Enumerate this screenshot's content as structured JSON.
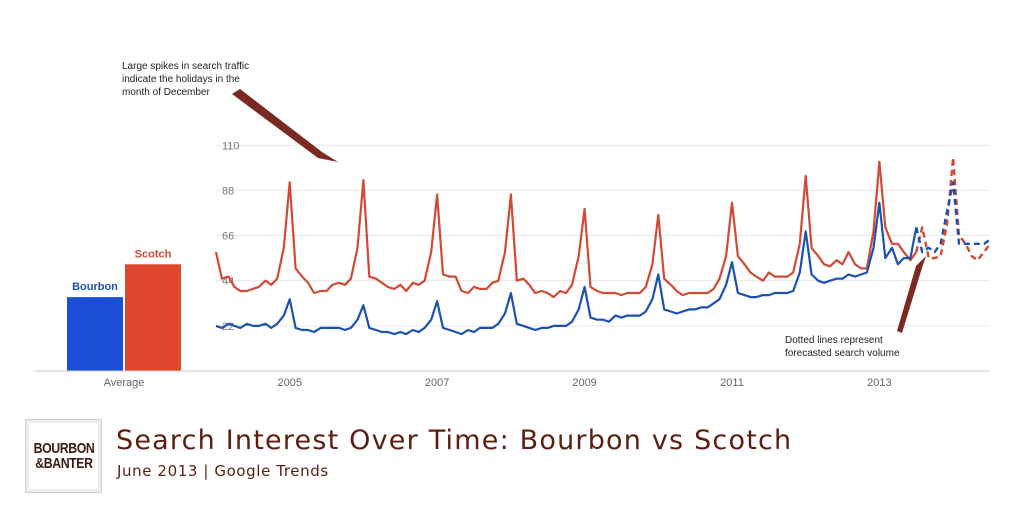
{
  "logo": {
    "line1": "BOURBON",
    "line2": "&BANTER"
  },
  "title": "Search Interest Over Time: Bourbon vs Scotch",
  "subtitle": "June 2013 | Google Trends",
  "annotations": {
    "spikes": "Large spikes in search traffic\nindicate the holidays in the\nmonth of December",
    "dotted": "Dotted lines represent\nforecasted search volume"
  },
  "colors": {
    "bourbon": "#1c51b0",
    "scotch": "#d04a35",
    "bar_bourbon": "#1c4fd6",
    "bar_scotch": "#e0472f",
    "grid": "#e6e6e6",
    "arrow": "#7a2a20"
  },
  "chart_data": {
    "type": "line",
    "title": "",
    "ylim": [
      0,
      115
    ],
    "yticks": [
      22,
      44,
      66,
      88,
      110
    ],
    "xlim": [
      2004.0,
      2014.5
    ],
    "xticks": [
      "2005",
      "2007",
      "2009",
      "2011",
      "2013"
    ],
    "grid": true,
    "average_bars": {
      "label": "Average",
      "legend_position": "above-bars",
      "bars": [
        {
          "name": "Bourbon",
          "value": 36
        },
        {
          "name": "Scotch",
          "value": 52
        }
      ]
    },
    "series": [
      {
        "name": "Scotch",
        "forecast_from": 2013.5,
        "points": [
          [
            2004.0,
            58
          ],
          [
            2004.08,
            45
          ],
          [
            2004.17,
            46
          ],
          [
            2004.25,
            41
          ],
          [
            2004.33,
            39
          ],
          [
            2004.42,
            39
          ],
          [
            2004.5,
            40
          ],
          [
            2004.58,
            41
          ],
          [
            2004.67,
            44
          ],
          [
            2004.75,
            42
          ],
          [
            2004.83,
            45
          ],
          [
            2004.92,
            60
          ],
          [
            2005.0,
            92
          ],
          [
            2005.08,
            50
          ],
          [
            2005.17,
            46
          ],
          [
            2005.25,
            43
          ],
          [
            2005.33,
            38
          ],
          [
            2005.42,
            39
          ],
          [
            2005.5,
            39
          ],
          [
            2005.58,
            42
          ],
          [
            2005.67,
            43
          ],
          [
            2005.75,
            42
          ],
          [
            2005.83,
            45
          ],
          [
            2005.92,
            60
          ],
          [
            2006.0,
            93
          ],
          [
            2006.08,
            46
          ],
          [
            2006.17,
            45
          ],
          [
            2006.25,
            43
          ],
          [
            2006.33,
            41
          ],
          [
            2006.42,
            40
          ],
          [
            2006.5,
            42
          ],
          [
            2006.58,
            39
          ],
          [
            2006.67,
            43
          ],
          [
            2006.75,
            42
          ],
          [
            2006.83,
            44
          ],
          [
            2006.92,
            58
          ],
          [
            2007.0,
            86
          ],
          [
            2007.08,
            47
          ],
          [
            2007.17,
            46
          ],
          [
            2007.25,
            46
          ],
          [
            2007.33,
            39
          ],
          [
            2007.42,
            38
          ],
          [
            2007.5,
            41
          ],
          [
            2007.58,
            40
          ],
          [
            2007.67,
            40
          ],
          [
            2007.75,
            43
          ],
          [
            2007.83,
            44
          ],
          [
            2007.92,
            58
          ],
          [
            2008.0,
            86
          ],
          [
            2008.08,
            44
          ],
          [
            2008.17,
            45
          ],
          [
            2008.25,
            42
          ],
          [
            2008.33,
            38
          ],
          [
            2008.42,
            39
          ],
          [
            2008.5,
            38
          ],
          [
            2008.58,
            36
          ],
          [
            2008.67,
            39
          ],
          [
            2008.75,
            38
          ],
          [
            2008.83,
            42
          ],
          [
            2008.92,
            56
          ],
          [
            2009.0,
            79
          ],
          [
            2009.08,
            41
          ],
          [
            2009.17,
            39
          ],
          [
            2009.25,
            38
          ],
          [
            2009.33,
            38
          ],
          [
            2009.42,
            38
          ],
          [
            2009.5,
            37
          ],
          [
            2009.58,
            38
          ],
          [
            2009.67,
            38
          ],
          [
            2009.75,
            38
          ],
          [
            2009.83,
            41
          ],
          [
            2009.92,
            52
          ],
          [
            2010.0,
            76
          ],
          [
            2010.08,
            45
          ],
          [
            2010.17,
            42
          ],
          [
            2010.25,
            39
          ],
          [
            2010.33,
            37
          ],
          [
            2010.42,
            38
          ],
          [
            2010.5,
            38
          ],
          [
            2010.58,
            38
          ],
          [
            2010.67,
            38
          ],
          [
            2010.75,
            40
          ],
          [
            2010.83,
            45
          ],
          [
            2010.92,
            56
          ],
          [
            2011.0,
            82
          ],
          [
            2011.08,
            56
          ],
          [
            2011.17,
            52
          ],
          [
            2011.25,
            48
          ],
          [
            2011.33,
            46
          ],
          [
            2011.42,
            44
          ],
          [
            2011.5,
            48
          ],
          [
            2011.58,
            46
          ],
          [
            2011.67,
            46
          ],
          [
            2011.75,
            46
          ],
          [
            2011.83,
            48
          ],
          [
            2011.92,
            62
          ],
          [
            2012.0,
            95
          ],
          [
            2012.08,
            60
          ],
          [
            2012.17,
            56
          ],
          [
            2012.25,
            52
          ],
          [
            2012.33,
            51
          ],
          [
            2012.42,
            54
          ],
          [
            2012.5,
            52
          ],
          [
            2012.58,
            58
          ],
          [
            2012.67,
            52
          ],
          [
            2012.75,
            50
          ],
          [
            2012.83,
            50
          ],
          [
            2012.92,
            68
          ],
          [
            2013.0,
            102
          ],
          [
            2013.08,
            70
          ],
          [
            2013.17,
            62
          ],
          [
            2013.25,
            62
          ],
          [
            2013.33,
            58
          ],
          [
            2013.42,
            54
          ],
          [
            2013.5,
            58
          ],
          [
            2013.58,
            70
          ],
          [
            2013.67,
            55
          ],
          [
            2013.75,
            55
          ],
          [
            2013.83,
            56
          ],
          [
            2013.92,
            72
          ],
          [
            2014.0,
            104
          ],
          [
            2014.08,
            66
          ],
          [
            2014.17,
            62
          ],
          [
            2014.25,
            56
          ],
          [
            2014.33,
            54
          ],
          [
            2014.42,
            58
          ],
          [
            2014.5,
            62
          ]
        ]
      },
      {
        "name": "Bourbon",
        "forecast_from": 2013.5,
        "points": [
          [
            2004.0,
            22
          ],
          [
            2004.08,
            21
          ],
          [
            2004.17,
            23
          ],
          [
            2004.25,
            22
          ],
          [
            2004.33,
            21
          ],
          [
            2004.42,
            23
          ],
          [
            2004.5,
            22
          ],
          [
            2004.58,
            22
          ],
          [
            2004.67,
            23
          ],
          [
            2004.75,
            21
          ],
          [
            2004.83,
            23
          ],
          [
            2004.92,
            27
          ],
          [
            2005.0,
            35
          ],
          [
            2005.08,
            21
          ],
          [
            2005.17,
            20
          ],
          [
            2005.25,
            20
          ],
          [
            2005.33,
            19
          ],
          [
            2005.42,
            21
          ],
          [
            2005.5,
            21
          ],
          [
            2005.58,
            21
          ],
          [
            2005.67,
            21
          ],
          [
            2005.75,
            20
          ],
          [
            2005.83,
            21
          ],
          [
            2005.92,
            25
          ],
          [
            2006.0,
            32
          ],
          [
            2006.08,
            21
          ],
          [
            2006.17,
            20
          ],
          [
            2006.25,
            19
          ],
          [
            2006.33,
            19
          ],
          [
            2006.42,
            18
          ],
          [
            2006.5,
            19
          ],
          [
            2006.58,
            18
          ],
          [
            2006.67,
            20
          ],
          [
            2006.75,
            19
          ],
          [
            2006.83,
            21
          ],
          [
            2006.92,
            25
          ],
          [
            2007.0,
            34
          ],
          [
            2007.08,
            21
          ],
          [
            2007.17,
            20
          ],
          [
            2007.25,
            19
          ],
          [
            2007.33,
            18
          ],
          [
            2007.42,
            20
          ],
          [
            2007.5,
            19
          ],
          [
            2007.58,
            21
          ],
          [
            2007.67,
            21
          ],
          [
            2007.75,
            21
          ],
          [
            2007.83,
            23
          ],
          [
            2007.92,
            28
          ],
          [
            2008.0,
            38
          ],
          [
            2008.08,
            23
          ],
          [
            2008.17,
            22
          ],
          [
            2008.25,
            21
          ],
          [
            2008.33,
            20
          ],
          [
            2008.42,
            21
          ],
          [
            2008.5,
            21
          ],
          [
            2008.58,
            22
          ],
          [
            2008.67,
            22
          ],
          [
            2008.75,
            22
          ],
          [
            2008.83,
            24
          ],
          [
            2008.92,
            30
          ],
          [
            2009.0,
            41
          ],
          [
            2009.08,
            26
          ],
          [
            2009.17,
            25
          ],
          [
            2009.25,
            25
          ],
          [
            2009.33,
            24
          ],
          [
            2009.42,
            27
          ],
          [
            2009.5,
            26
          ],
          [
            2009.58,
            27
          ],
          [
            2009.67,
            27
          ],
          [
            2009.75,
            27
          ],
          [
            2009.83,
            29
          ],
          [
            2009.92,
            35
          ],
          [
            2010.0,
            47
          ],
          [
            2010.08,
            30
          ],
          [
            2010.17,
            29
          ],
          [
            2010.25,
            28
          ],
          [
            2010.33,
            29
          ],
          [
            2010.42,
            30
          ],
          [
            2010.5,
            30
          ],
          [
            2010.58,
            31
          ],
          [
            2010.67,
            31
          ],
          [
            2010.75,
            33
          ],
          [
            2010.83,
            35
          ],
          [
            2010.92,
            42
          ],
          [
            2011.0,
            53
          ],
          [
            2011.08,
            38
          ],
          [
            2011.17,
            37
          ],
          [
            2011.25,
            36
          ],
          [
            2011.33,
            36
          ],
          [
            2011.42,
            37
          ],
          [
            2011.5,
            37
          ],
          [
            2011.58,
            38
          ],
          [
            2011.67,
            38
          ],
          [
            2011.75,
            38
          ],
          [
            2011.83,
            39
          ],
          [
            2011.92,
            48
          ],
          [
            2012.0,
            68
          ],
          [
            2012.08,
            47
          ],
          [
            2012.17,
            44
          ],
          [
            2012.25,
            43
          ],
          [
            2012.33,
            44
          ],
          [
            2012.42,
            45
          ],
          [
            2012.5,
            45
          ],
          [
            2012.58,
            47
          ],
          [
            2012.67,
            46
          ],
          [
            2012.75,
            47
          ],
          [
            2012.83,
            48
          ],
          [
            2012.92,
            60
          ],
          [
            2013.0,
            82
          ],
          [
            2013.08,
            55
          ],
          [
            2013.17,
            60
          ],
          [
            2013.25,
            52
          ],
          [
            2013.33,
            55
          ],
          [
            2013.42,
            55
          ],
          [
            2013.5,
            70
          ],
          [
            2013.58,
            58
          ],
          [
            2013.67,
            60
          ],
          [
            2013.75,
            58
          ],
          [
            2013.83,
            62
          ],
          [
            2013.92,
            78
          ],
          [
            2014.0,
            92
          ],
          [
            2014.08,
            62
          ],
          [
            2014.17,
            62
          ],
          [
            2014.25,
            62
          ],
          [
            2014.33,
            62
          ],
          [
            2014.42,
            62
          ],
          [
            2014.5,
            64
          ]
        ]
      }
    ]
  }
}
